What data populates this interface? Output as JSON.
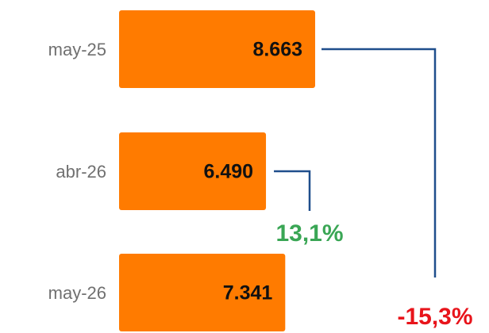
{
  "chart_data": {
    "type": "hbar",
    "categories": [
      "may-25",
      "abr-26",
      "may-26"
    ],
    "values": [
      8663,
      6490,
      7341
    ],
    "value_labels": [
      "8.663",
      "6.490",
      "7.341"
    ],
    "color": "#ff7b00",
    "annotations": [
      {
        "text": "13,1%",
        "color": "#3aa655"
      },
      {
        "text": "-15,3%",
        "color": "#e8141b"
      }
    ]
  }
}
